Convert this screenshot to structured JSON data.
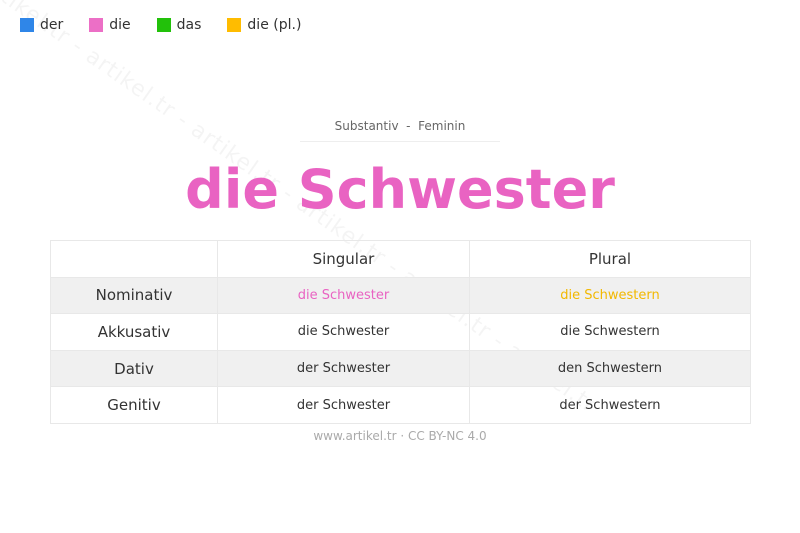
{
  "watermark": "artikel.tr - artikel.tr - artikel.tr - artikel.tr - artikel.tr - artikel.tr",
  "legend": [
    {
      "label": "der",
      "color": "#2f86e8"
    },
    {
      "label": "die",
      "color": "#ec6fc6"
    },
    {
      "label": "das",
      "color": "#22c10a"
    },
    {
      "label": "die (pl.)",
      "color": "#ffbc00"
    }
  ],
  "subtitle": "Substantiv  -  Feminin",
  "title": "die Schwester",
  "title_color": "#e963c2",
  "table": {
    "headers": [
      "",
      "Singular",
      "Plural"
    ],
    "rows": [
      {
        "case": "Nominativ",
        "singular": "die Schwester",
        "plural": "die Schwestern",
        "singular_color": "#e963c2",
        "plural_color": "#f2b800"
      },
      {
        "case": "Akkusativ",
        "singular": "die Schwester",
        "plural": "die Schwestern"
      },
      {
        "case": "Dativ",
        "singular": "der Schwester",
        "plural": "den Schwestern"
      },
      {
        "case": "Genitiv",
        "singular": "der Schwester",
        "plural": "der Schwestern"
      }
    ]
  },
  "footer": "www.artikel.tr · CC BY-NC 4.0"
}
